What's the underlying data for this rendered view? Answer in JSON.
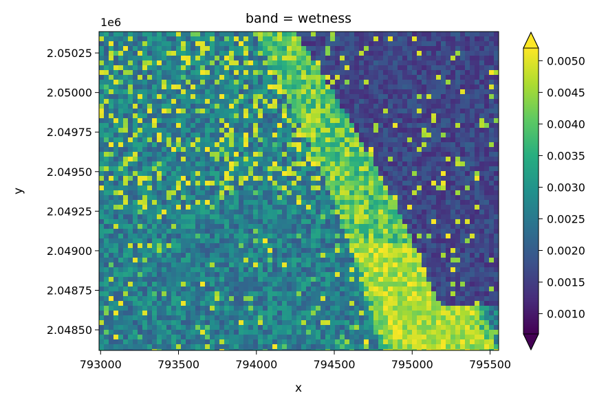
{
  "chart_data": {
    "type": "heatmap",
    "title": "band = wetness",
    "xlabel": "x",
    "ylabel": "y",
    "y_offset_label": "1e6",
    "x_ticks": [
      {
        "value": 793000,
        "label": "793000"
      },
      {
        "value": 793500,
        "label": "793500"
      },
      {
        "value": 794000,
        "label": "794000"
      },
      {
        "value": 794500,
        "label": "794500"
      },
      {
        "value": 795000,
        "label": "795000"
      },
      {
        "value": 795500,
        "label": "795500"
      }
    ],
    "y_ticks": [
      {
        "value": 2050250,
        "label": "2.05025"
      },
      {
        "value": 2050000,
        "label": "2.05000"
      },
      {
        "value": 2049750,
        "label": "2.04975"
      },
      {
        "value": 2049500,
        "label": "2.04950"
      },
      {
        "value": 2049250,
        "label": "2.04925"
      },
      {
        "value": 2049000,
        "label": "2.04900"
      },
      {
        "value": 2048750,
        "label": "2.04875"
      },
      {
        "value": 2048500,
        "label": "2.04850"
      }
    ],
    "xlim": [
      792990,
      795555
    ],
    "ylim": [
      2048370,
      2050385
    ],
    "colorbar": {
      "colormap": "viridis",
      "range": [
        0.00068,
        0.0052
      ],
      "extend": "both",
      "ticks": [
        {
          "value": 0.001,
          "label": "0.0010"
        },
        {
          "value": 0.0015,
          "label": "0.0015"
        },
        {
          "value": 0.002,
          "label": "0.0020"
        },
        {
          "value": 0.0025,
          "label": "0.0025"
        },
        {
          "value": 0.003,
          "label": "0.0030"
        },
        {
          "value": 0.0035,
          "label": "0.0035"
        },
        {
          "value": 0.004,
          "label": "0.0040"
        },
        {
          "value": 0.0045,
          "label": "0.0045"
        },
        {
          "value": 0.005,
          "label": "0.0050"
        }
      ]
    }
  }
}
